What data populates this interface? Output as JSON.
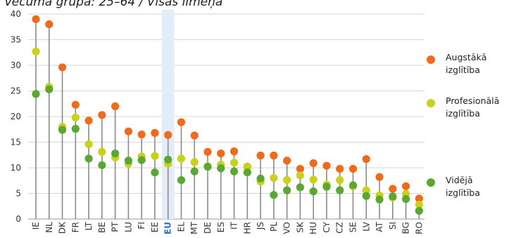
{
  "chart_data": {
    "type": "scatter",
    "title": "Vecuma grupa: 25–64 / Visas līmeņa",
    "xlabel": "",
    "ylabel": "",
    "ylim": [
      0,
      40
    ],
    "yticks": [
      0,
      5,
      10,
      15,
      20,
      25,
      30,
      35,
      40
    ],
    "grid": true,
    "highlight_category": "EU",
    "categories": [
      "IE",
      "NL",
      "DK",
      "FR",
      "LT",
      "BE",
      "PT",
      "LU",
      "FI",
      "EE",
      "EU",
      "EL",
      "MT",
      "DE",
      "ES",
      "IT",
      "HR",
      "JS",
      "PL",
      "VO",
      "SK",
      "HU",
      "CY",
      "CZ",
      "SE",
      "LV",
      "AT",
      "SI",
      "BG",
      "RO"
    ],
    "series": [
      {
        "name": "Augstākā izglītība",
        "color": "#ef6a1a",
        "values": [
          39.0,
          38.0,
          29.6,
          22.3,
          19.2,
          20.3,
          22.0,
          17.1,
          16.5,
          16.8,
          16.4,
          18.9,
          16.3,
          13.1,
          12.8,
          13.2,
          10.2,
          12.4,
          12.4,
          11.4,
          9.8,
          10.9,
          10.4,
          9.8,
          9.8,
          11.7,
          8.2,
          5.9,
          6.4,
          4.0
        ]
      },
      {
        "name": "Profesionālā izglītība",
        "color": "#c9d219",
        "values": [
          32.7,
          25.8,
          18.0,
          19.8,
          14.6,
          13.1,
          12.0,
          10.8,
          12.2,
          12.3,
          10.8,
          11.8,
          11.1,
          10.3,
          10.6,
          11.0,
          10.1,
          7.3,
          8.0,
          7.6,
          8.5,
          7.7,
          6.7,
          7.6,
          6.4,
          5.6,
          4.6,
          4.2,
          4.9,
          2.8
        ]
      },
      {
        "name": "Vidējā izglītība",
        "color": "#5aa832",
        "values": [
          24.4,
          25.3,
          17.4,
          17.6,
          11.8,
          10.5,
          12.8,
          11.4,
          11.5,
          9.1,
          11.6,
          7.6,
          9.3,
          10.2,
          9.9,
          9.3,
          9.1,
          7.9,
          4.7,
          5.6,
          6.2,
          5.4,
          6.3,
          5.6,
          6.6,
          4.5,
          3.8,
          4.4,
          3.9,
          1.6
        ]
      }
    ],
    "legend_position": "right"
  }
}
